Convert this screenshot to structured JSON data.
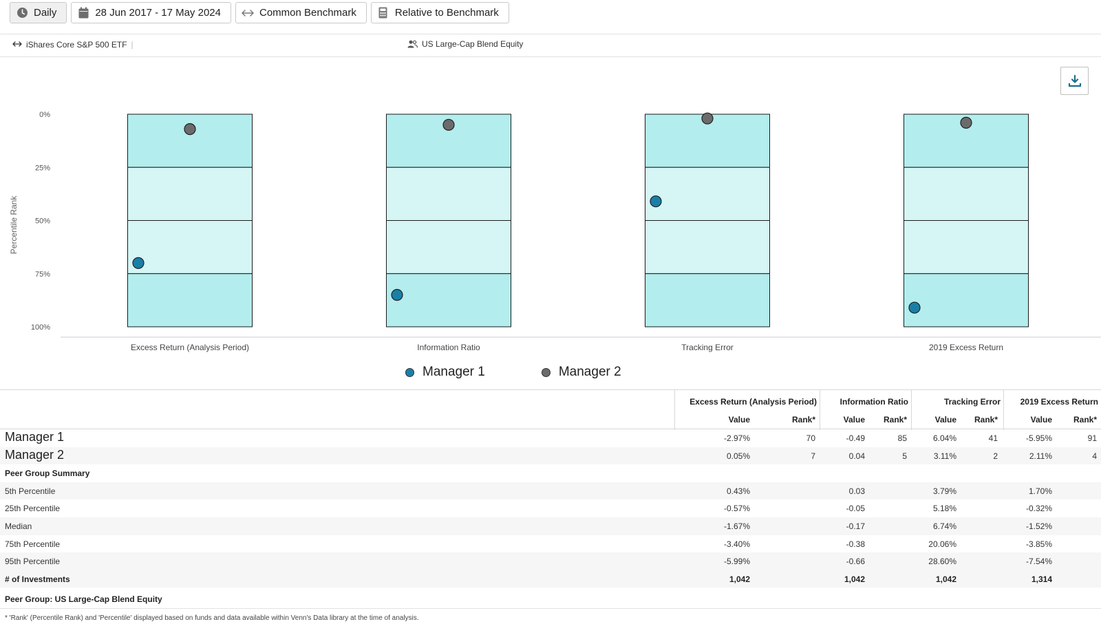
{
  "toolbar": {
    "frequency": "Daily",
    "date_range": "28 Jun 2017 - 17 May 2024",
    "benchmark_mode": "Common Benchmark",
    "relative": "Relative to Benchmark"
  },
  "benchmark": {
    "name": "iShares Core S&P 500 ETF",
    "separator": "|"
  },
  "peer_group": {
    "name": "US Large-Cap Blend Equity"
  },
  "icons": {
    "frequency": "clock-icon",
    "date_range": "calendar-icon",
    "benchmark_mode": "arrows-horizontal-icon",
    "relative": "calculator-icon",
    "peer_group": "users-icon",
    "download": "download-icon"
  },
  "colors": {
    "manager1": "#1a7fa8",
    "manager2": "#6b6b6b",
    "quartile_outer": "#b3eded",
    "quartile_inner": "#d6f5f5"
  },
  "chart_data": {
    "type": "scatter",
    "ylabel": "Percentile Rank",
    "y_ticks": [
      "0%",
      "25%",
      "50%",
      "75%",
      "100%"
    ],
    "ylim": [
      0,
      100
    ],
    "y_inverted": true,
    "categories": [
      "Excess Return (Analysis Period)",
      "Information Ratio",
      "Tracking Error",
      "2019 Excess Return"
    ],
    "quartile_bands": [
      0,
      25,
      50,
      75,
      100
    ],
    "series": [
      {
        "name": "Manager 1",
        "values": [
          70,
          85,
          41,
          91
        ]
      },
      {
        "name": "Manager 2",
        "values": [
          7,
          5,
          2,
          4
        ]
      }
    ],
    "legend_position": "bottom-center",
    "grid": false
  },
  "table": {
    "groups": [
      {
        "title": "Excess Return (Analysis Period)",
        "value_label": "Value",
        "rank_label": "Rank*"
      },
      {
        "title": "Information Ratio",
        "value_label": "Value",
        "rank_label": "Rank*"
      },
      {
        "title": "Tracking Error",
        "value_label": "Value",
        "rank_label": "Rank*"
      },
      {
        "title": "2019 Excess Return",
        "value_label": "Value",
        "rank_label": "Rank*"
      }
    ],
    "managers": [
      {
        "name": "Manager 1",
        "cells": [
          "-2.97%",
          "70",
          "-0.49",
          "85",
          "6.04%",
          "41",
          "-5.95%",
          "91"
        ]
      },
      {
        "name": "Manager 2",
        "cells": [
          "0.05%",
          "7",
          "0.04",
          "5",
          "3.11%",
          "2",
          "2.11%",
          "4"
        ]
      }
    ],
    "summary_title": "Peer Group Summary",
    "summary": [
      {
        "name": "5th Percentile",
        "cells": [
          "0.43%",
          "",
          "0.03",
          "",
          "3.79%",
          "",
          "1.70%",
          ""
        ]
      },
      {
        "name": "25th Percentile",
        "cells": [
          "-0.57%",
          "",
          "-0.05",
          "",
          "5.18%",
          "",
          "-0.32%",
          ""
        ]
      },
      {
        "name": "Median",
        "cells": [
          "-1.67%",
          "",
          "-0.17",
          "",
          "6.74%",
          "",
          "-1.52%",
          ""
        ]
      },
      {
        "name": "75th Percentile",
        "cells": [
          "-3.40%",
          "",
          "-0.38",
          "",
          "20.06%",
          "",
          "-3.85%",
          ""
        ]
      },
      {
        "name": "95th Percentile",
        "cells": [
          "-5.99%",
          "",
          "-0.66",
          "",
          "28.60%",
          "",
          "-7.54%",
          ""
        ]
      }
    ],
    "count_row": {
      "name": "# of Investments",
      "cells": [
        "1,042",
        "",
        "1,042",
        "",
        "1,042",
        "",
        "1,314",
        ""
      ]
    }
  },
  "footer": {
    "peer_group_line": "Peer Group:  US Large-Cap Blend Equity",
    "footnote": "* 'Rank' (Percentile Rank) and 'Percentile' displayed based on funds and data available within Venn's Data library at the time of analysis."
  }
}
